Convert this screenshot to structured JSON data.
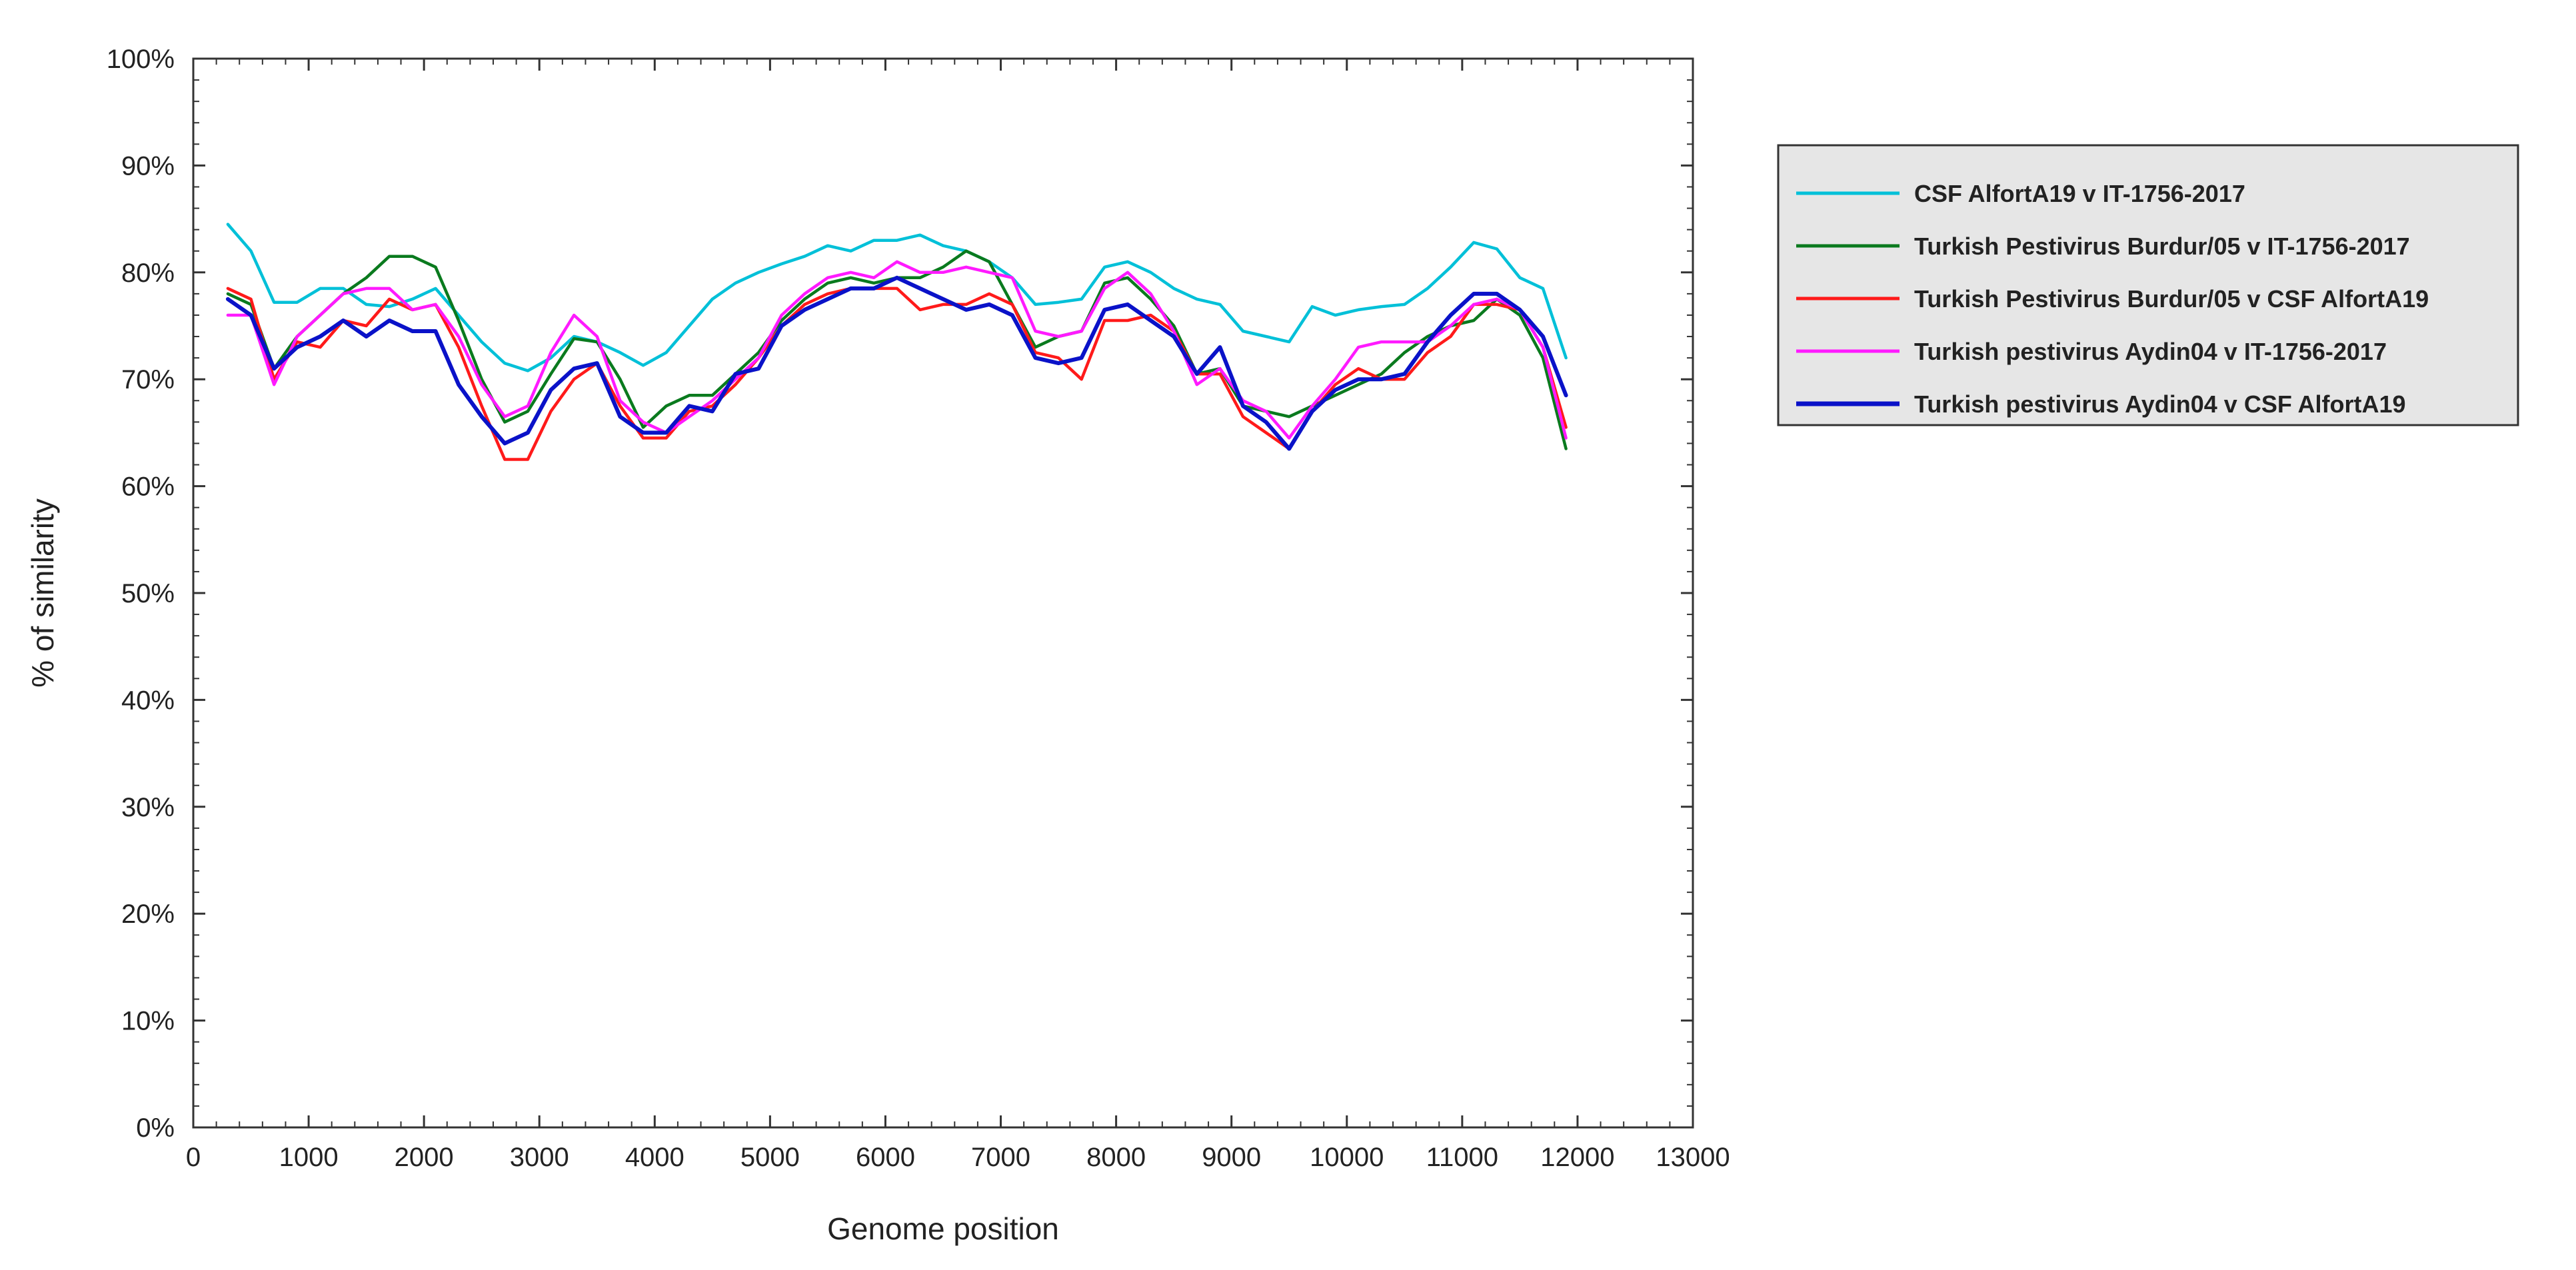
{
  "chart_data": {
    "type": "line",
    "title": "",
    "xlabel": "Genome position",
    "ylabel": "% of similarity",
    "xlim": [
      0,
      13000
    ],
    "ylim": [
      0,
      100
    ],
    "x_ticks": [
      0,
      1000,
      2000,
      3000,
      4000,
      5000,
      6000,
      7000,
      8000,
      9000,
      10000,
      11000,
      12000,
      13000
    ],
    "y_ticks": [
      0,
      10,
      20,
      30,
      40,
      50,
      60,
      70,
      80,
      90,
      100
    ],
    "y_tick_labels": [
      "0%",
      "10%",
      "20%",
      "30%",
      "40%",
      "50%",
      "60%",
      "70%",
      "80%",
      "90%",
      "100%"
    ],
    "grid": false,
    "legend_position": "right",
    "series": [
      {
        "name": "CSF AlfortA19 v IT-1756-2017",
        "color": "#00c0d8",
        "values": [
          [
            300,
            84.5
          ],
          [
            500,
            82
          ],
          [
            700,
            77.2
          ],
          [
            900,
            77.2
          ],
          [
            1100,
            78.5
          ],
          [
            1300,
            78.5
          ],
          [
            1500,
            77
          ],
          [
            1700,
            76.8
          ],
          [
            1900,
            77.5
          ],
          [
            2100,
            78.5
          ],
          [
            2300,
            76
          ],
          [
            2500,
            73.5
          ],
          [
            2700,
            71.5
          ],
          [
            2900,
            70.8
          ],
          [
            3100,
            72
          ],
          [
            3300,
            74
          ],
          [
            3500,
            73.5
          ],
          [
            3700,
            72.5
          ],
          [
            3900,
            71.3
          ],
          [
            4100,
            72.5
          ],
          [
            4300,
            75
          ],
          [
            4500,
            77.5
          ],
          [
            4700,
            79
          ],
          [
            4900,
            80
          ],
          [
            5100,
            80.8
          ],
          [
            5300,
            81.5
          ],
          [
            5500,
            82.5
          ],
          [
            5700,
            82
          ],
          [
            5900,
            83
          ],
          [
            6100,
            83
          ],
          [
            6300,
            83.5
          ],
          [
            6500,
            82.5
          ],
          [
            6700,
            82
          ],
          [
            6900,
            81
          ],
          [
            7100,
            79.5
          ],
          [
            7300,
            77
          ],
          [
            7500,
            77.2
          ],
          [
            7700,
            77.5
          ],
          [
            7900,
            80.5
          ],
          [
            8100,
            81
          ],
          [
            8300,
            80
          ],
          [
            8500,
            78.5
          ],
          [
            8700,
            77.5
          ],
          [
            8900,
            77
          ],
          [
            9100,
            74.5
          ],
          [
            9300,
            74
          ],
          [
            9500,
            73.5
          ],
          [
            9700,
            76.8
          ],
          [
            9900,
            76
          ],
          [
            10100,
            76.5
          ],
          [
            10300,
            76.8
          ],
          [
            10500,
            77
          ],
          [
            10700,
            78.5
          ],
          [
            10900,
            80.5
          ],
          [
            11100,
            82.8
          ],
          [
            11300,
            82.2
          ],
          [
            11500,
            79.5
          ],
          [
            11700,
            78.5
          ],
          [
            11900,
            72
          ]
        ]
      },
      {
        "name": "Turkish Pestivirus Burdur/05 v IT-1756-2017",
        "color": "#0a7a1e",
        "values": [
          [
            300,
            78
          ],
          [
            500,
            77
          ],
          [
            700,
            71
          ],
          [
            900,
            74
          ],
          [
            1100,
            76
          ],
          [
            1300,
            78
          ],
          [
            1500,
            79.5
          ],
          [
            1700,
            81.5
          ],
          [
            1900,
            81.5
          ],
          [
            2100,
            80.5
          ],
          [
            2300,
            75.5
          ],
          [
            2500,
            70
          ],
          [
            2700,
            66
          ],
          [
            2900,
            67
          ],
          [
            3100,
            70.5
          ],
          [
            3300,
            73.8
          ],
          [
            3500,
            73.5
          ],
          [
            3700,
            70
          ],
          [
            3900,
            65.5
          ],
          [
            4100,
            67.5
          ],
          [
            4300,
            68.5
          ],
          [
            4500,
            68.5
          ],
          [
            4700,
            70.5
          ],
          [
            4900,
            72.5
          ],
          [
            5100,
            75.5
          ],
          [
            5300,
            77.5
          ],
          [
            5500,
            79
          ],
          [
            5700,
            79.5
          ],
          [
            5900,
            79
          ],
          [
            6100,
            79.5
          ],
          [
            6300,
            79.5
          ],
          [
            6500,
            80.5
          ],
          [
            6700,
            82
          ],
          [
            6900,
            81
          ],
          [
            7100,
            77
          ],
          [
            7300,
            73
          ],
          [
            7500,
            74
          ],
          [
            7700,
            74.5
          ],
          [
            7900,
            79
          ],
          [
            8100,
            79.5
          ],
          [
            8300,
            77.5
          ],
          [
            8500,
            75
          ],
          [
            8700,
            70.5
          ],
          [
            8900,
            71
          ],
          [
            9100,
            67.5
          ],
          [
            9300,
            67
          ],
          [
            9500,
            66.5
          ],
          [
            9700,
            67.5
          ],
          [
            9900,
            68.5
          ],
          [
            10100,
            69.5
          ],
          [
            10300,
            70.5
          ],
          [
            10500,
            72.5
          ],
          [
            10700,
            74
          ],
          [
            10900,
            75
          ],
          [
            11100,
            75.5
          ],
          [
            11300,
            77.5
          ],
          [
            11500,
            76
          ],
          [
            11700,
            72
          ],
          [
            11900,
            63.5
          ]
        ]
      },
      {
        "name": "Turkish Pestivirus Burdur/05 v CSF AlfortA19",
        "color": "#ff1a1a",
        "values": [
          [
            300,
            78.5
          ],
          [
            500,
            77.5
          ],
          [
            700,
            70
          ],
          [
            900,
            73.5
          ],
          [
            1100,
            73
          ],
          [
            1300,
            75.5
          ],
          [
            1500,
            75
          ],
          [
            1700,
            77.5
          ],
          [
            1900,
            76.5
          ],
          [
            2100,
            77
          ],
          [
            2300,
            73
          ],
          [
            2500,
            67.5
          ],
          [
            2700,
            62.5
          ],
          [
            2900,
            62.5
          ],
          [
            3100,
            67
          ],
          [
            3300,
            70
          ],
          [
            3500,
            71.5
          ],
          [
            3700,
            67.5
          ],
          [
            3900,
            64.5
          ],
          [
            4100,
            64.5
          ],
          [
            4300,
            67
          ],
          [
            4500,
            67.5
          ],
          [
            4700,
            69.5
          ],
          [
            4900,
            72
          ],
          [
            5100,
            75
          ],
          [
            5300,
            77
          ],
          [
            5500,
            78
          ],
          [
            5700,
            78.5
          ],
          [
            5900,
            78.5
          ],
          [
            6100,
            78.5
          ],
          [
            6300,
            76.5
          ],
          [
            6500,
            77
          ],
          [
            6700,
            77
          ],
          [
            6900,
            78
          ],
          [
            7100,
            77
          ],
          [
            7300,
            72.5
          ],
          [
            7500,
            72
          ],
          [
            7700,
            70
          ],
          [
            7900,
            75.5
          ],
          [
            8100,
            75.5
          ],
          [
            8300,
            76
          ],
          [
            8500,
            74.5
          ],
          [
            8700,
            70.5
          ],
          [
            8900,
            70.5
          ],
          [
            9100,
            66.5
          ],
          [
            9300,
            65
          ],
          [
            9500,
            63.5
          ],
          [
            9700,
            67
          ],
          [
            9900,
            69.5
          ],
          [
            10100,
            71
          ],
          [
            10300,
            70
          ],
          [
            10500,
            70
          ],
          [
            10700,
            72.5
          ],
          [
            10900,
            74
          ],
          [
            11100,
            77
          ],
          [
            11300,
            77
          ],
          [
            11500,
            76.5
          ],
          [
            11700,
            73
          ],
          [
            11900,
            65.5
          ]
        ]
      },
      {
        "name": "Turkish pestivirus Aydin04 v IT-1756-2017",
        "color": "#ff1aff",
        "values": [
          [
            300,
            76
          ],
          [
            500,
            76
          ],
          [
            700,
            69.5
          ],
          [
            900,
            74
          ],
          [
            1100,
            76
          ],
          [
            1300,
            78
          ],
          [
            1500,
            78.5
          ],
          [
            1700,
            78.5
          ],
          [
            1900,
            76.5
          ],
          [
            2100,
            77
          ],
          [
            2300,
            74
          ],
          [
            2500,
            69.5
          ],
          [
            2700,
            66.5
          ],
          [
            2900,
            67.5
          ],
          [
            3100,
            72.5
          ],
          [
            3300,
            76
          ],
          [
            3500,
            74
          ],
          [
            3700,
            68
          ],
          [
            3900,
            66
          ],
          [
            4100,
            65
          ],
          [
            4300,
            66.5
          ],
          [
            4500,
            68
          ],
          [
            4700,
            70
          ],
          [
            4900,
            72
          ],
          [
            5100,
            76
          ],
          [
            5300,
            78
          ],
          [
            5500,
            79.5
          ],
          [
            5700,
            80
          ],
          [
            5900,
            79.5
          ],
          [
            6100,
            81
          ],
          [
            6300,
            80
          ],
          [
            6500,
            80
          ],
          [
            6700,
            80.5
          ],
          [
            6900,
            80
          ],
          [
            7100,
            79.5
          ],
          [
            7300,
            74.5
          ],
          [
            7500,
            74
          ],
          [
            7700,
            74.5
          ],
          [
            7900,
            78.5
          ],
          [
            8100,
            80
          ],
          [
            8300,
            78
          ],
          [
            8500,
            74.5
          ],
          [
            8700,
            69.5
          ],
          [
            8900,
            71
          ],
          [
            9100,
            68
          ],
          [
            9300,
            67
          ],
          [
            9500,
            64.5
          ],
          [
            9700,
            67.5
          ],
          [
            9900,
            70
          ],
          [
            10100,
            73
          ],
          [
            10300,
            73.5
          ],
          [
            10500,
            73.5
          ],
          [
            10700,
            73.5
          ],
          [
            10900,
            75
          ],
          [
            11100,
            77
          ],
          [
            11300,
            77.5
          ],
          [
            11500,
            76.5
          ],
          [
            11700,
            73
          ],
          [
            11900,
            64.5
          ]
        ]
      },
      {
        "name": "Turkish pestivirus Aydin04 v CSF AlfortA19",
        "color": "#0a12c8",
        "values": [
          [
            300,
            77.5
          ],
          [
            500,
            76
          ],
          [
            700,
            71
          ],
          [
            900,
            73
          ],
          [
            1100,
            74
          ],
          [
            1300,
            75.5
          ],
          [
            1500,
            74
          ],
          [
            1700,
            75.5
          ],
          [
            1900,
            74.5
          ],
          [
            2100,
            74.5
          ],
          [
            2300,
            69.5
          ],
          [
            2500,
            66.5
          ],
          [
            2700,
            64
          ],
          [
            2900,
            65
          ],
          [
            3100,
            69
          ],
          [
            3300,
            71
          ],
          [
            3500,
            71.5
          ],
          [
            3700,
            66.5
          ],
          [
            3900,
            65
          ],
          [
            4100,
            65
          ],
          [
            4300,
            67.5
          ],
          [
            4500,
            67
          ],
          [
            4700,
            70.5
          ],
          [
            4900,
            71
          ],
          [
            5100,
            75
          ],
          [
            5300,
            76.5
          ],
          [
            5500,
            77.5
          ],
          [
            5700,
            78.5
          ],
          [
            5900,
            78.5
          ],
          [
            6100,
            79.5
          ],
          [
            6300,
            78.5
          ],
          [
            6500,
            77.5
          ],
          [
            6700,
            76.5
          ],
          [
            6900,
            77
          ],
          [
            7100,
            76
          ],
          [
            7300,
            72
          ],
          [
            7500,
            71.5
          ],
          [
            7700,
            72
          ],
          [
            7900,
            76.5
          ],
          [
            8100,
            77
          ],
          [
            8300,
            75.5
          ],
          [
            8500,
            74
          ],
          [
            8700,
            70.5
          ],
          [
            8900,
            73
          ],
          [
            9100,
            67.5
          ],
          [
            9300,
            66
          ],
          [
            9500,
            63.5
          ],
          [
            9700,
            67
          ],
          [
            9900,
            69
          ],
          [
            10100,
            70
          ],
          [
            10300,
            70
          ],
          [
            10500,
            70.5
          ],
          [
            10700,
            73.5
          ],
          [
            10900,
            76
          ],
          [
            11100,
            78
          ],
          [
            11300,
            78
          ],
          [
            11500,
            76.5
          ],
          [
            11700,
            74
          ],
          [
            11900,
            68.5
          ]
        ]
      }
    ]
  }
}
